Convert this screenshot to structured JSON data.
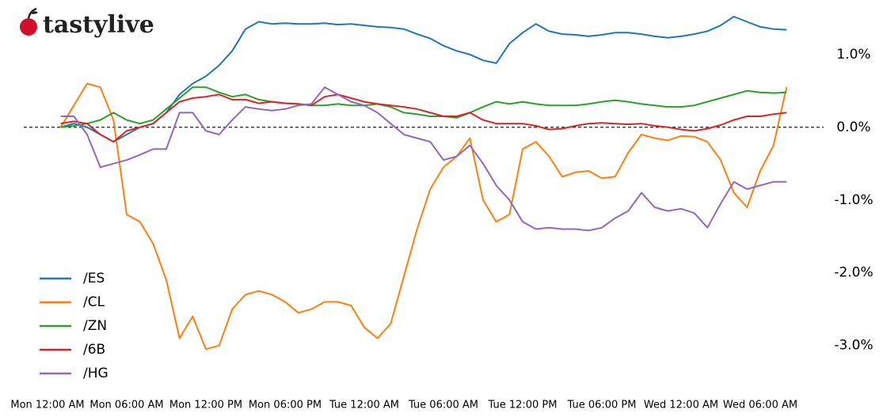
{
  "logo": "tastylive",
  "chart_data": {
    "type": "line",
    "x": [
      1,
      2,
      3,
      4,
      5,
      6,
      7,
      8,
      9,
      10,
      11,
      12,
      13,
      14,
      15,
      16,
      17,
      18,
      19,
      20,
      21,
      22,
      23,
      24,
      25,
      26,
      27,
      28,
      29,
      30,
      31,
      32,
      33,
      34,
      35,
      36,
      37,
      38,
      39,
      40,
      41,
      42,
      43,
      44,
      45,
      46,
      47,
      48,
      49,
      50,
      51,
      52,
      53,
      54,
      55,
      56
    ],
    "xlim": [
      -0.6,
      57
    ],
    "xticks": [
      {
        "value": 0,
        "label": "Mon 12:00 AM"
      },
      {
        "value": 6,
        "label": "Mon 06:00 AM"
      },
      {
        "value": 12,
        "label": "Mon 12:00 PM"
      },
      {
        "value": 18,
        "label": "Mon 06:00 PM"
      },
      {
        "value": 24,
        "label": "Tue 12:00 AM"
      },
      {
        "value": 30,
        "label": "Tue 06:00 AM"
      },
      {
        "value": 36,
        "label": "Tue 12:00 PM"
      },
      {
        "value": 42,
        "label": "Tue 06:00 PM"
      },
      {
        "value": 48,
        "label": "Wed 12:00 AM"
      },
      {
        "value": 54,
        "label": "Wed 06:00 AM"
      }
    ],
    "ylim": [
      -3.58,
      1.64
    ],
    "yticks": [
      {
        "value": 1,
        "label": "1.0%"
      },
      {
        "value": 0,
        "label": "0.0%"
      },
      {
        "value": -1,
        "label": "-1.0%"
      },
      {
        "value": -2,
        "label": "-2.0%"
      },
      {
        "value": -3,
        "label": "-3.0%"
      }
    ],
    "reference_line": 0,
    "legend": "lower left",
    "series": [
      {
        "name": "/ES",
        "color": "#1f77b4",
        "values": [
          0.0,
          0.05,
          0.0,
          -0.1,
          -0.2,
          -0.1,
          0.0,
          0.05,
          0.2,
          0.45,
          0.6,
          0.7,
          0.85,
          1.05,
          1.35,
          1.45,
          1.42,
          1.43,
          1.42,
          1.42,
          1.43,
          1.41,
          1.42,
          1.4,
          1.38,
          1.37,
          1.35,
          1.28,
          1.22,
          1.12,
          1.05,
          1.0,
          0.92,
          0.88,
          1.15,
          1.3,
          1.42,
          1.32,
          1.28,
          1.27,
          1.25,
          1.27,
          1.3,
          1.3,
          1.28,
          1.25,
          1.23,
          1.25,
          1.28,
          1.32,
          1.4,
          1.52,
          1.45,
          1.38,
          1.35,
          1.34
        ]
      },
      {
        "name": "/CL",
        "color": "#ff7f0e",
        "values": [
          0.0,
          0.3,
          0.6,
          0.55,
          0.1,
          -1.2,
          -1.3,
          -1.6,
          -2.1,
          -2.9,
          -2.6,
          -3.05,
          -3.0,
          -2.5,
          -2.3,
          -2.25,
          -2.3,
          -2.4,
          -2.55,
          -2.5,
          -2.4,
          -2.4,
          -2.45,
          -2.75,
          -2.9,
          -2.7,
          -2.05,
          -1.4,
          -0.85,
          -0.55,
          -0.4,
          -0.15,
          -1.0,
          -1.3,
          -1.2,
          -0.3,
          -0.2,
          -0.4,
          -0.68,
          -0.62,
          -0.6,
          -0.7,
          -0.68,
          -0.35,
          -0.1,
          -0.15,
          -0.18,
          -0.12,
          -0.13,
          -0.2,
          -0.45,
          -0.9,
          -1.1,
          -0.6,
          -0.25,
          0.55
        ]
      },
      {
        "name": "/ZN",
        "color": "#2ca02c",
        "values": [
          0.0,
          0.02,
          0.05,
          0.1,
          0.2,
          0.1,
          0.05,
          0.1,
          0.25,
          0.4,
          0.55,
          0.55,
          0.48,
          0.42,
          0.45,
          0.38,
          0.35,
          0.33,
          0.32,
          0.3,
          0.3,
          0.32,
          0.3,
          0.3,
          0.32,
          0.28,
          0.2,
          0.18,
          0.15,
          0.15,
          0.13,
          0.2,
          0.28,
          0.35,
          0.32,
          0.35,
          0.32,
          0.3,
          0.3,
          0.3,
          0.32,
          0.35,
          0.37,
          0.35,
          0.32,
          0.3,
          0.28,
          0.28,
          0.3,
          0.35,
          0.4,
          0.45,
          0.5,
          0.48,
          0.47,
          0.48
        ]
      },
      {
        "name": "/6B",
        "color": "#d62728",
        "values": [
          0.05,
          0.08,
          0.05,
          -0.1,
          -0.2,
          -0.05,
          0.0,
          0.05,
          0.2,
          0.35,
          0.4,
          0.42,
          0.45,
          0.38,
          0.38,
          0.33,
          0.35,
          0.33,
          0.32,
          0.3,
          0.42,
          0.45,
          0.4,
          0.35,
          0.32,
          0.3,
          0.28,
          0.25,
          0.2,
          0.15,
          0.15,
          0.2,
          0.1,
          0.05,
          0.05,
          0.05,
          0.02,
          -0.03,
          -0.02,
          0.02,
          0.05,
          0.06,
          0.05,
          0.04,
          0.05,
          0.02,
          0.0,
          -0.03,
          -0.05,
          -0.02,
          0.03,
          0.1,
          0.15,
          0.15,
          0.18,
          0.2
        ]
      },
      {
        "name": "/HG",
        "color": "#9467bd",
        "values": [
          0.15,
          0.15,
          -0.1,
          -0.55,
          -0.5,
          -0.45,
          -0.38,
          -0.3,
          -0.3,
          0.2,
          0.2,
          -0.05,
          -0.1,
          0.1,
          0.28,
          0.25,
          0.23,
          0.25,
          0.3,
          0.32,
          0.55,
          0.45,
          0.35,
          0.3,
          0.2,
          0.05,
          -0.1,
          -0.15,
          -0.2,
          -0.45,
          -0.4,
          -0.25,
          -0.5,
          -0.8,
          -1.0,
          -1.3,
          -1.4,
          -1.38,
          -1.4,
          -1.4,
          -1.42,
          -1.38,
          -1.25,
          -1.15,
          -0.9,
          -1.1,
          -1.15,
          -1.12,
          -1.18,
          -1.38,
          -1.05,
          -0.75,
          -0.85,
          -0.8,
          -0.75,
          -0.75
        ]
      }
    ]
  }
}
